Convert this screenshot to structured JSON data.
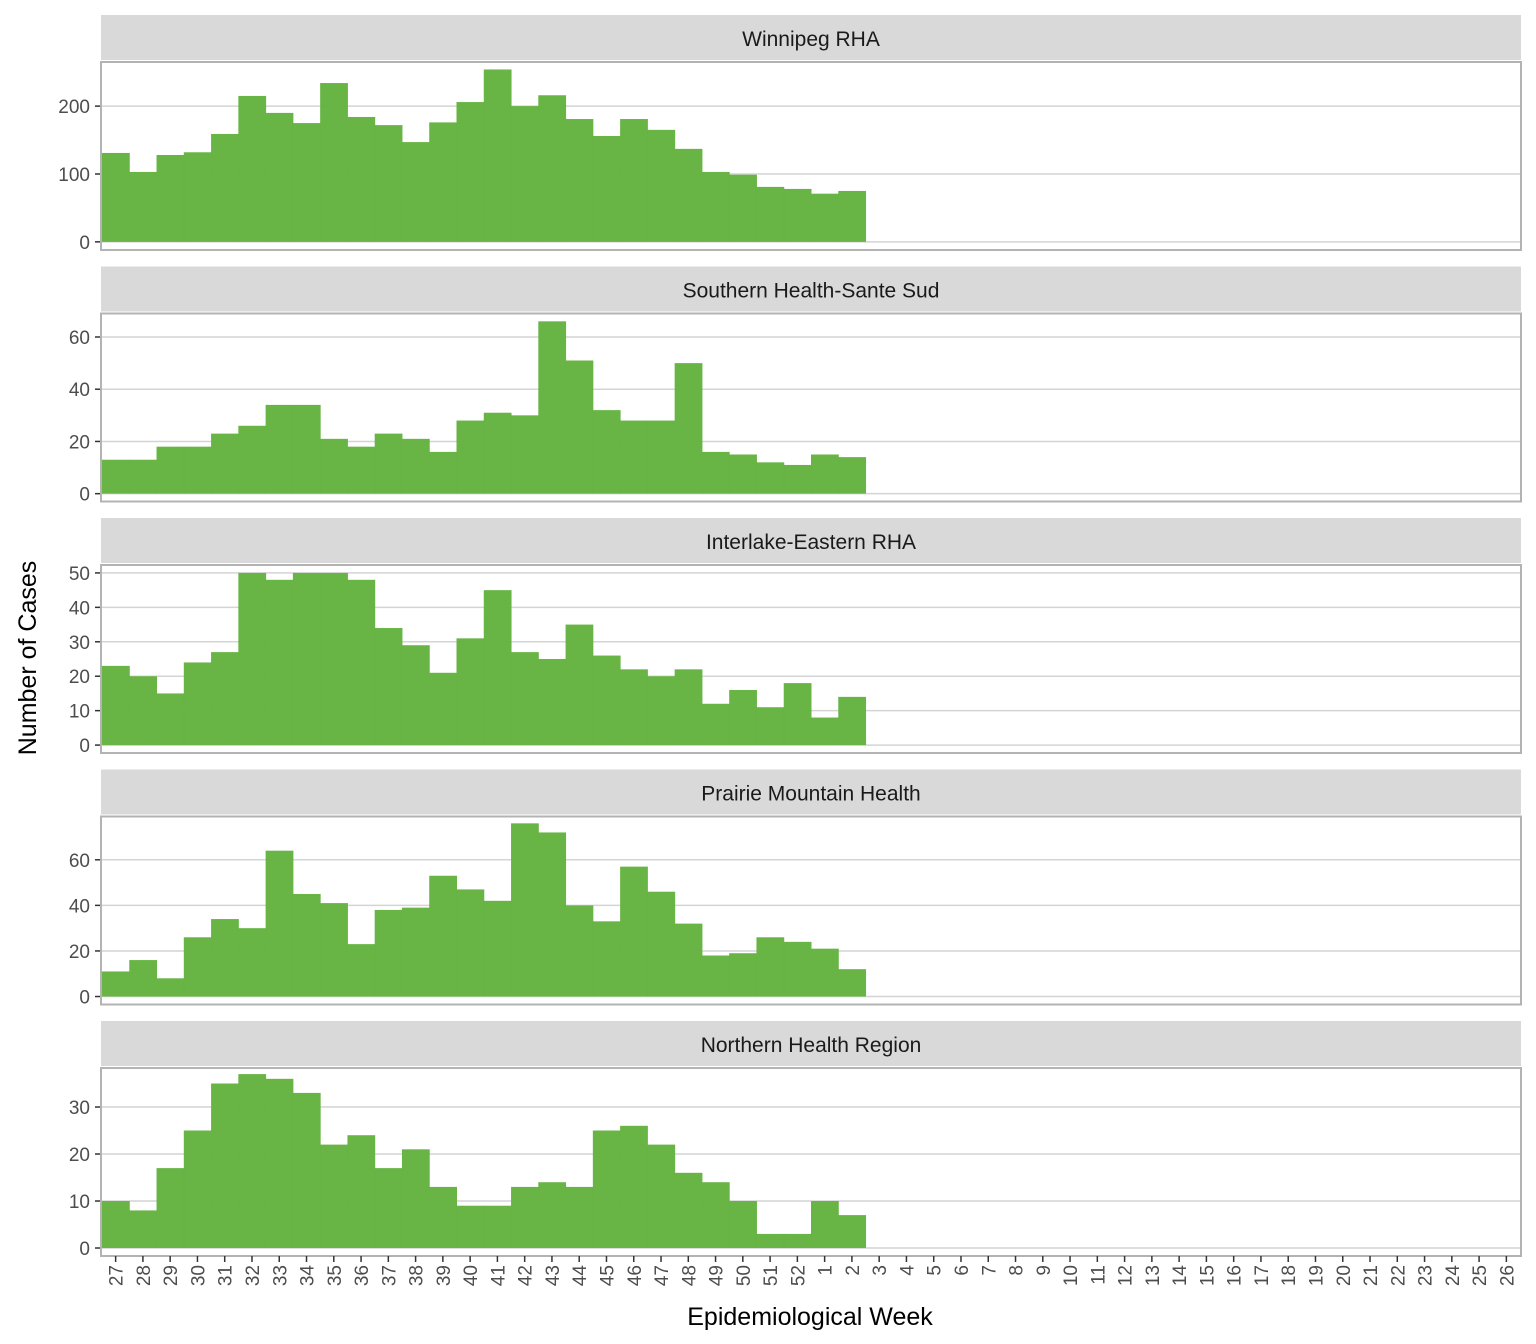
{
  "chart_data": {
    "type": "bar",
    "xlabel": "Epidemiological Week",
    "ylabel": "Number of Cases",
    "x_ticks": [
      "27",
      "28",
      "29",
      "30",
      "31",
      "32",
      "33",
      "34",
      "35",
      "36",
      "37",
      "38",
      "39",
      "40",
      "41",
      "42",
      "43",
      "44",
      "45",
      "46",
      "47",
      "48",
      "49",
      "50",
      "51",
      "52",
      "1",
      "2",
      "3",
      "4",
      "5",
      "6",
      "7",
      "8",
      "9",
      "10",
      "11",
      "12",
      "13",
      "14",
      "15",
      "16",
      "17",
      "18",
      "19",
      "20",
      "21",
      "22",
      "23",
      "24",
      "25",
      "26"
    ],
    "bar_color": "#63b33f",
    "grid": true,
    "panels": [
      {
        "title": "Winnipeg RHA",
        "ylim": [
          -12,
          265
        ],
        "yticks": [
          0,
          100,
          200
        ],
        "values": [
          131,
          103,
          128,
          132,
          159,
          215,
          190,
          175,
          234,
          184,
          172,
          147,
          176,
          206,
          254,
          200,
          216,
          181,
          156,
          181,
          165,
          137,
          103,
          99,
          81,
          78,
          71,
          75
        ]
      },
      {
        "title": "Southern Health-Sante Sud",
        "ylim": [
          -3,
          69
        ],
        "yticks": [
          0,
          20,
          40,
          60
        ],
        "values": [
          13,
          13,
          18,
          18,
          23,
          26,
          34,
          34,
          21,
          18,
          23,
          21,
          16,
          28,
          31,
          30,
          66,
          51,
          32,
          28,
          28,
          50,
          16,
          15,
          12,
          11,
          15,
          14
        ]
      },
      {
        "title": "Interlake-Eastern RHA",
        "ylim": [
          -2.3,
          52.3
        ],
        "yticks": [
          0,
          10,
          20,
          30,
          40,
          50
        ],
        "values": [
          23,
          20,
          15,
          24,
          27,
          50,
          48,
          50,
          50,
          48,
          34,
          29,
          21,
          31,
          45,
          27,
          25,
          35,
          26,
          22,
          20,
          22,
          12,
          16,
          11,
          18,
          8,
          14
        ]
      },
      {
        "title": "Prairie Mountain Health",
        "ylim": [
          -3.5,
          79
        ],
        "yticks": [
          0,
          20,
          40,
          60
        ],
        "values": [
          11,
          16,
          8,
          26,
          34,
          30,
          64,
          45,
          41,
          23,
          38,
          39,
          53,
          47,
          42,
          76,
          72,
          40,
          33,
          57,
          46,
          32,
          18,
          19,
          26,
          24,
          21,
          12
        ]
      },
      {
        "title": "Northern Health Region",
        "ylim": [
          -1.7,
          38.3
        ],
        "yticks": [
          0,
          10,
          20,
          30
        ],
        "values": [
          10,
          8,
          17,
          25,
          35,
          37,
          36,
          33,
          22,
          24,
          17,
          21,
          13,
          9,
          9,
          13,
          14,
          13,
          25,
          26,
          22,
          16,
          14,
          10,
          3,
          3,
          10,
          7
        ]
      }
    ]
  }
}
